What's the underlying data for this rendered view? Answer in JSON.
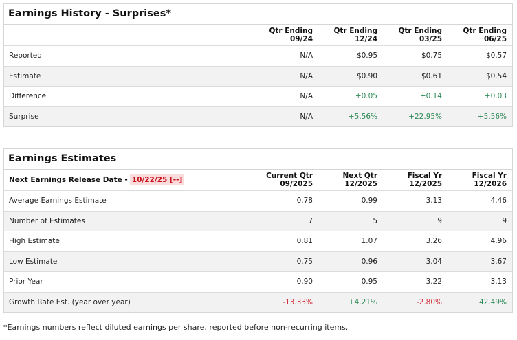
{
  "history": {
    "title": "Earnings History - Surprises*",
    "columns": [
      {
        "line1": "Qtr Ending",
        "line2": "09/24"
      },
      {
        "line1": "Qtr Ending",
        "line2": "12/24"
      },
      {
        "line1": "Qtr Ending",
        "line2": "03/25"
      },
      {
        "line1": "Qtr Ending",
        "line2": "06/25"
      }
    ],
    "rows": [
      {
        "label": "Reported",
        "values": [
          "N/A",
          "$0.95",
          "$0.75",
          "$0.57"
        ]
      },
      {
        "label": "Estimate",
        "values": [
          "N/A",
          "$0.90",
          "$0.61",
          "$0.54"
        ]
      },
      {
        "label": "Difference",
        "values": [
          "N/A",
          "+0.05",
          "+0.14",
          "+0.03"
        ]
      },
      {
        "label": "Surprise",
        "values": [
          "N/A",
          "+5.56%",
          "+22.95%",
          "+5.56%"
        ]
      }
    ]
  },
  "estimates": {
    "title": "Earnings Estimates",
    "release_label": "Next Earnings Release Date -",
    "release_date": "10/22/25 [--]",
    "columns": [
      {
        "line1": "Current Qtr",
        "line2": "09/2025"
      },
      {
        "line1": "Next Qtr",
        "line2": "12/2025"
      },
      {
        "line1": "Fiscal Yr",
        "line2": "12/2025"
      },
      {
        "line1": "Fiscal Yr",
        "line2": "12/2026"
      }
    ],
    "rows": [
      {
        "label": "Average Earnings Estimate",
        "values": [
          "0.78",
          "0.99",
          "3.13",
          "4.46"
        ]
      },
      {
        "label": "Number of Estimates",
        "values": [
          "7",
          "5",
          "9",
          "9"
        ]
      },
      {
        "label": "High Estimate",
        "values": [
          "0.81",
          "1.07",
          "3.26",
          "4.96"
        ]
      },
      {
        "label": "Low Estimate",
        "values": [
          "0.75",
          "0.96",
          "3.04",
          "3.67"
        ]
      },
      {
        "label": "Prior Year",
        "values": [
          "0.90",
          "0.95",
          "3.22",
          "3.13"
        ]
      },
      {
        "label": "Growth Rate Est. (year over year)",
        "values": [
          "-13.33%",
          "+4.21%",
          "-2.80%",
          "+42.49%"
        ]
      }
    ]
  },
  "colors": {
    "positive": "#2e8b57",
    "negative": "#d0303a",
    "release_date_bg": "#fbdcdc"
  },
  "footnote": "*Earnings numbers reflect diluted earnings per share, reported before non-recurring items."
}
